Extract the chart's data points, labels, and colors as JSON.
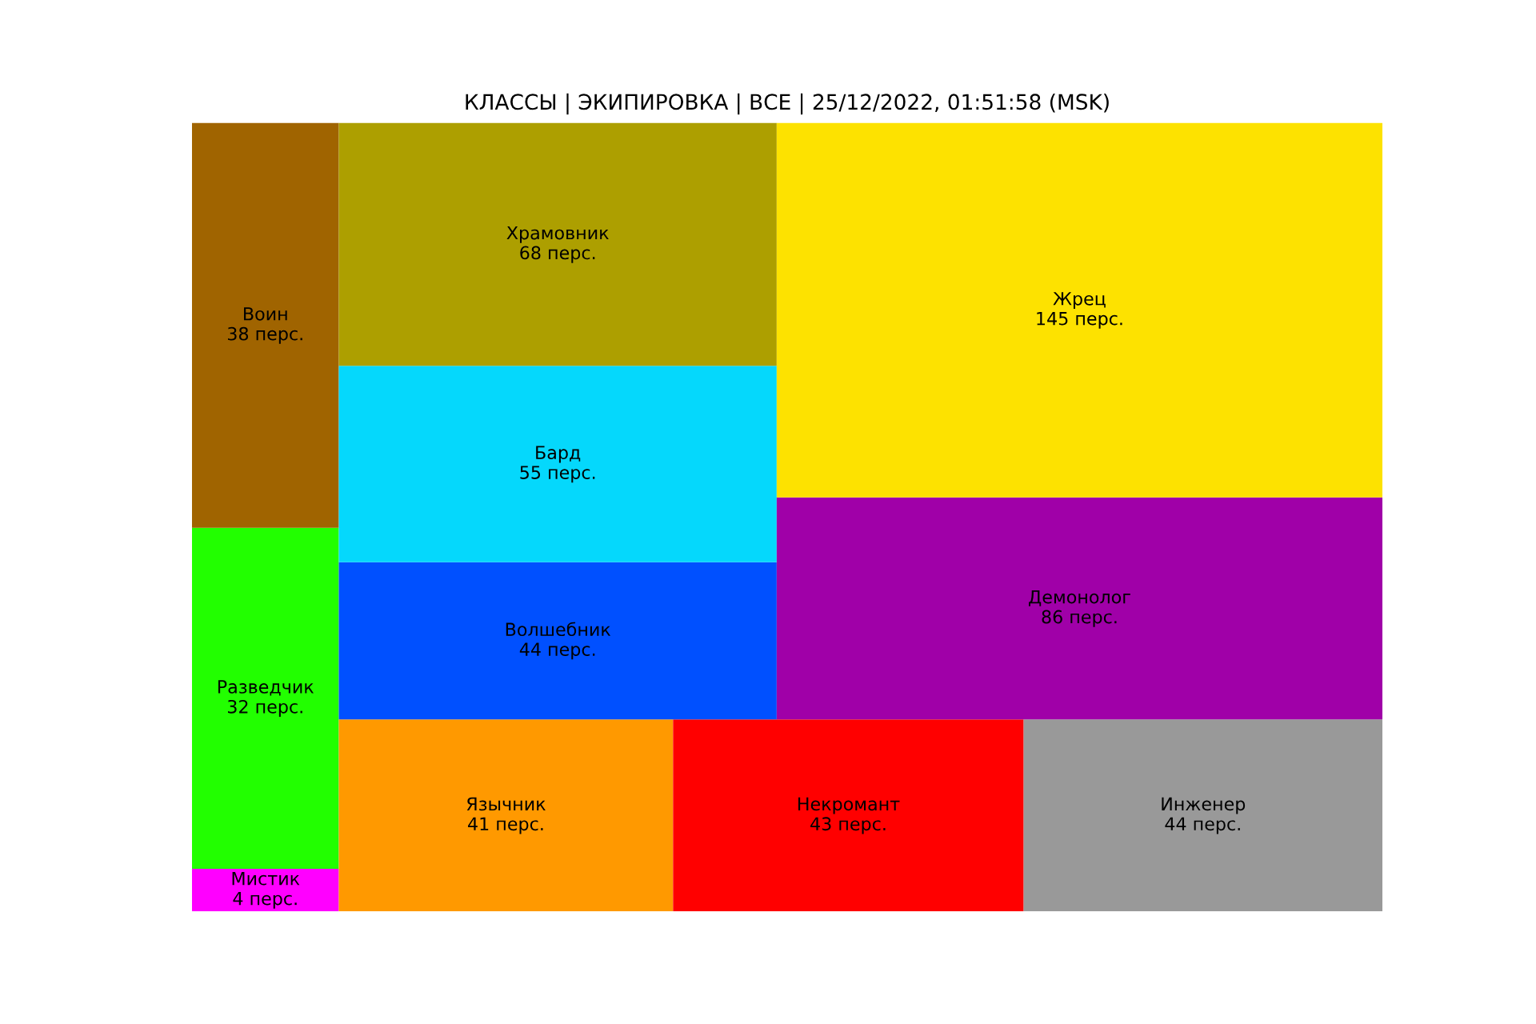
{
  "chart_data": {
    "type": "other",
    "title": "КЛАССЫ | ЭКИПИРОВКА | ВСЕ | 25/12/2022, 01:51:58 (MSK)",
    "categories": [
      "Мистик",
      "Разведчик",
      "Воин",
      "Язычник",
      "Некромант",
      "Инженер",
      "Волшебник",
      "Бард",
      "Храмовник",
      "Демонолог",
      "Жрец"
    ],
    "values": [
      4,
      32,
      38,
      41,
      43,
      44,
      44,
      55,
      68,
      86,
      145
    ],
    "value_labels": [
      "4 перс.",
      "32 перс.",
      "38 перс.",
      "41 перс.",
      "43 перс.",
      "44 перс.",
      "44 перс.",
      "55 перс.",
      "68 перс.",
      "86 перс.",
      "145 перс."
    ],
    "colors": [
      "#ff00ff",
      "#22ff00",
      "#a06400",
      "#ff9900",
      "#ff0000",
      "#999999",
      "#0050ff",
      "#05d8fc",
      "#ad9f00",
      "#a000a8",
      "#fde200"
    ]
  }
}
